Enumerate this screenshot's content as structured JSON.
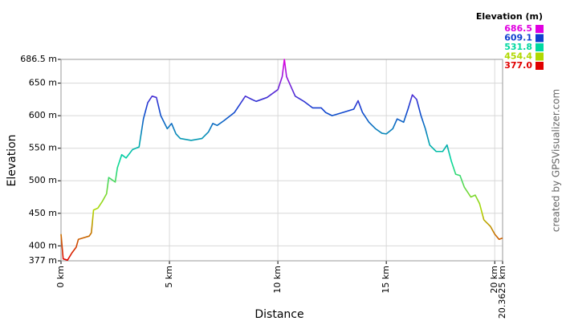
{
  "chart_data": {
    "type": "line",
    "x_label": "Distance",
    "y_label": "Elevation",
    "credit": "created by GPSVisualizer.com",
    "x": [
      0,
      0.1,
      0.3,
      0.5,
      0.7,
      0.8,
      1.0,
      1.3,
      1.4,
      1.5,
      1.7,
      1.9,
      2.1,
      2.2,
      2.5,
      2.6,
      2.8,
      3.0,
      3.3,
      3.6,
      3.8,
      4.0,
      4.2,
      4.4,
      4.6,
      4.9,
      5.1,
      5.3,
      5.5,
      6.0,
      6.5,
      6.8,
      7.0,
      7.2,
      7.5,
      8.0,
      8.3,
      8.5,
      8.8,
      9.0,
      9.5,
      10.0,
      10.2,
      10.3,
      10.4,
      10.6,
      10.8,
      11.2,
      11.6,
      12.0,
      12.2,
      12.5,
      13.0,
      13.5,
      13.7,
      13.9,
      14.2,
      14.5,
      14.8,
      15.0,
      15.3,
      15.5,
      15.8,
      16.0,
      16.2,
      16.4,
      16.6,
      16.8,
      17.0,
      17.3,
      17.6,
      17.8,
      18.0,
      18.2,
      18.4,
      18.6,
      18.9,
      19.1,
      19.3,
      19.5,
      19.8,
      20.0,
      20.2,
      20.3625
    ],
    "values": [
      418,
      380,
      378,
      389,
      398,
      410,
      412,
      415,
      420,
      455,
      458,
      468,
      480,
      505,
      498,
      520,
      540,
      535,
      548,
      552,
      595,
      620,
      630,
      628,
      600,
      580,
      588,
      572,
      565,
      562,
      565,
      575,
      588,
      585,
      592,
      605,
      620,
      630,
      625,
      622,
      628,
      640,
      660,
      686.5,
      660,
      645,
      630,
      622,
      612,
      612,
      605,
      600,
      605,
      610,
      623,
      605,
      590,
      580,
      573,
      572,
      580,
      595,
      590,
      610,
      632,
      625,
      600,
      580,
      555,
      545,
      545,
      555,
      530,
      510,
      508,
      490,
      475,
      478,
      465,
      440,
      430,
      418,
      410,
      412
    ],
    "xlim": [
      0,
      20.3625
    ],
    "ylim": [
      377,
      686.5
    ],
    "xticks": [
      {
        "value": 0,
        "label": "0 km"
      },
      {
        "value": 5,
        "label": "5 km"
      },
      {
        "value": 10,
        "label": "10 km"
      },
      {
        "value": 15,
        "label": "15 km"
      },
      {
        "value": 20,
        "label": "20 km"
      },
      {
        "value": 20.3625,
        "label": "20.3625 km"
      }
    ],
    "yticks": [
      {
        "value": 377,
        "label": "377 m"
      },
      {
        "value": 400,
        "label": "400 m"
      },
      {
        "value": 450,
        "label": "450 m"
      },
      {
        "value": 500,
        "label": "500 m"
      },
      {
        "value": 550,
        "label": "550 m"
      },
      {
        "value": 600,
        "label": "600 m"
      },
      {
        "value": 650,
        "label": "650 m"
      },
      {
        "value": 686.5,
        "label": "686.5 m"
      }
    ],
    "grid": true,
    "legend": {
      "title": "Elevation (m)",
      "items": [
        {
          "value": 686.5,
          "label": "686.5",
          "color": "#e000e0"
        },
        {
          "value": 609.1,
          "label": "609.1",
          "color": "#1040d0"
        },
        {
          "value": 531.8,
          "label": "531.8",
          "color": "#00d8a0"
        },
        {
          "value": 454.4,
          "label": "454.4",
          "color": "#b0d800"
        },
        {
          "value": 377.0,
          "label": "377.0",
          "color": "#e00000"
        }
      ]
    }
  }
}
